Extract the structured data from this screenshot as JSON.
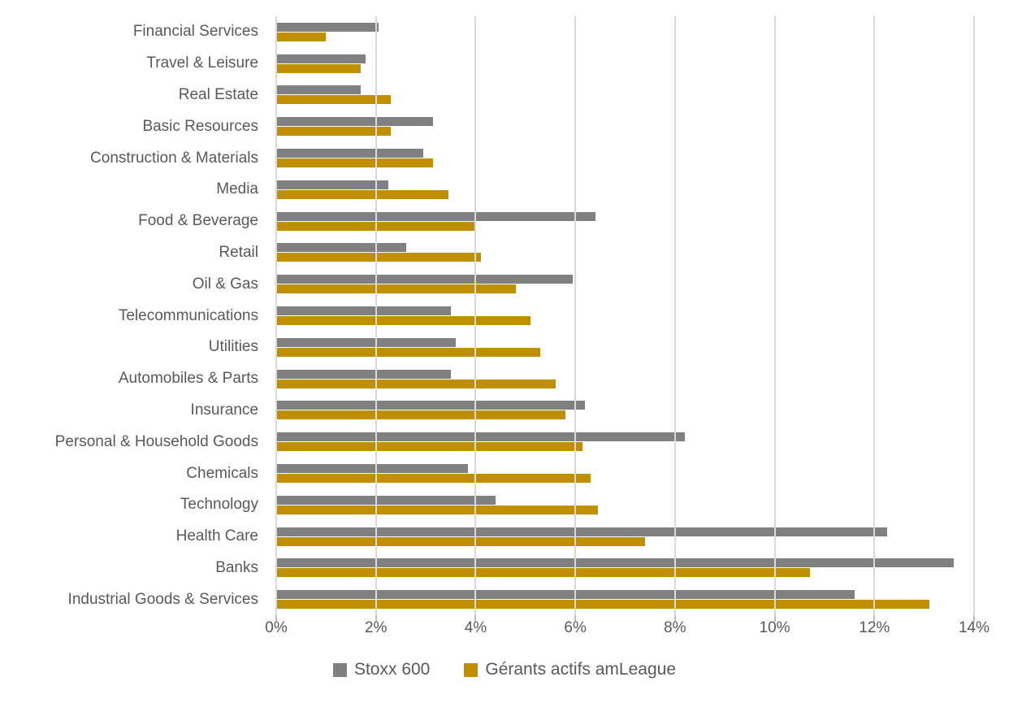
{
  "chart_data": {
    "type": "bar",
    "orientation": "horizontal",
    "title": "",
    "xlabel": "",
    "ylabel": "",
    "xlim": [
      0,
      14
    ],
    "x_ticks": [
      0,
      2,
      4,
      6,
      8,
      10,
      12,
      14
    ],
    "x_tick_labels": [
      "0%",
      "2%",
      "4%",
      "6%",
      "8%",
      "10%",
      "12%",
      "14%"
    ],
    "grid": "vertical",
    "legend_position": "bottom",
    "categories": [
      "Financial Services",
      "Travel & Leisure",
      "Real Estate",
      "Basic Resources",
      "Construction & Materials",
      "Media",
      "Food & Beverage",
      "Retail",
      "Oil & Gas",
      "Telecommunications",
      "Utilities",
      "Automobiles & Parts",
      "Insurance",
      "Personal & Household Goods",
      "Chemicals",
      "Technology",
      "Health Care",
      "Banks",
      "Industrial Goods & Services"
    ],
    "series": [
      {
        "name": "Stoxx 600",
        "color": "#808080",
        "values": [
          2.05,
          1.8,
          1.7,
          3.15,
          2.95,
          2.25,
          6.4,
          2.6,
          5.95,
          3.5,
          3.6,
          3.5,
          6.2,
          8.2,
          3.85,
          4.4,
          12.25,
          13.6,
          11.6
        ]
      },
      {
        "name": "Gérants actifs amLeague",
        "color": "#BF8F00",
        "values": [
          1.0,
          1.7,
          2.3,
          2.3,
          3.15,
          3.45,
          4.0,
          4.1,
          4.8,
          5.1,
          5.3,
          5.6,
          5.8,
          6.15,
          6.3,
          6.45,
          7.4,
          10.7,
          13.1
        ]
      }
    ]
  },
  "style": {
    "background": "#FFFFFF",
    "gridline_color": "#D9D9D9",
    "tick_color": "#BFBFBF",
    "text_color": "#595959"
  }
}
